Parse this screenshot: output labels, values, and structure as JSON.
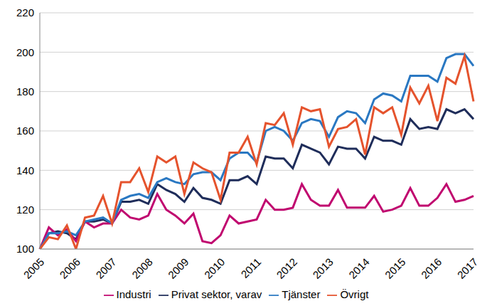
{
  "chart_data": {
    "type": "line",
    "categories": [
      "2005",
      null,
      null,
      null,
      "2006",
      null,
      null,
      null,
      "2007",
      null,
      null,
      null,
      "2008",
      null,
      null,
      null,
      "2009",
      null,
      null,
      null,
      "2010",
      null,
      null,
      null,
      "2011",
      null,
      null,
      null,
      "2012",
      null,
      null,
      null,
      "2013",
      null,
      null,
      null,
      "2014",
      null,
      null,
      null,
      "2015",
      null,
      null,
      null,
      "2016",
      null,
      null,
      null,
      "2017"
    ],
    "series": [
      {
        "name": "Privat sektor, varav",
        "color": "#1f2d5a",
        "values": [
          100,
          108,
          109,
          108,
          105,
          114,
          114,
          115,
          113,
          124,
          124,
          125,
          123,
          133,
          130,
          128,
          124,
          131,
          126,
          125,
          123,
          135,
          135,
          137,
          133,
          147,
          146,
          146,
          141,
          153,
          151,
          149,
          143,
          152,
          151,
          151,
          146,
          157,
          155,
          155,
          153,
          166,
          161,
          162,
          161,
          171,
          169,
          171,
          166
        ]
      },
      {
        "name": "Industri",
        "color": "#c0076f",
        "values": [
          100,
          111,
          107,
          110,
          104,
          114,
          111,
          113,
          113,
          120,
          116,
          115,
          117,
          128,
          120,
          117,
          113,
          118,
          104,
          103,
          107,
          117,
          113,
          114,
          115,
          125,
          120,
          120,
          121,
          133,
          125,
          122,
          122,
          130,
          121,
          121,
          121,
          127,
          119,
          120,
          122,
          131,
          122,
          122,
          126,
          133,
          124,
          125,
          127
        ]
      },
      {
        "name": "Tjänster",
        "color": "#2a78c2",
        "values": [
          100,
          108,
          108,
          109,
          107,
          114,
          115,
          116,
          113,
          125,
          127,
          128,
          126,
          134,
          136,
          134,
          133,
          138,
          139,
          139,
          135,
          146,
          149,
          149,
          144,
          160,
          162,
          160,
          155,
          164,
          166,
          165,
          157,
          167,
          170,
          169,
          164,
          176,
          179,
          178,
          175,
          188,
          188,
          188,
          185,
          197,
          199,
          199,
          193
        ]
      },
      {
        "name": "Övrigt",
        "color": "#e5532d",
        "values": [
          100,
          106,
          105,
          112,
          100,
          116,
          117,
          127,
          113,
          134,
          134,
          141,
          129,
          147,
          144,
          147,
          128,
          144,
          141,
          139,
          125,
          149,
          149,
          157,
          143,
          164,
          163,
          169,
          153,
          172,
          170,
          171,
          152,
          161,
          162,
          166,
          148,
          172,
          169,
          172,
          158,
          182,
          174,
          183,
          165,
          187,
          184,
          198,
          175
        ]
      }
    ],
    "ylim": [
      100,
      220
    ],
    "yticks": [
      100,
      120,
      140,
      160,
      180,
      200,
      220
    ],
    "grid": true,
    "legend": "bottom"
  }
}
